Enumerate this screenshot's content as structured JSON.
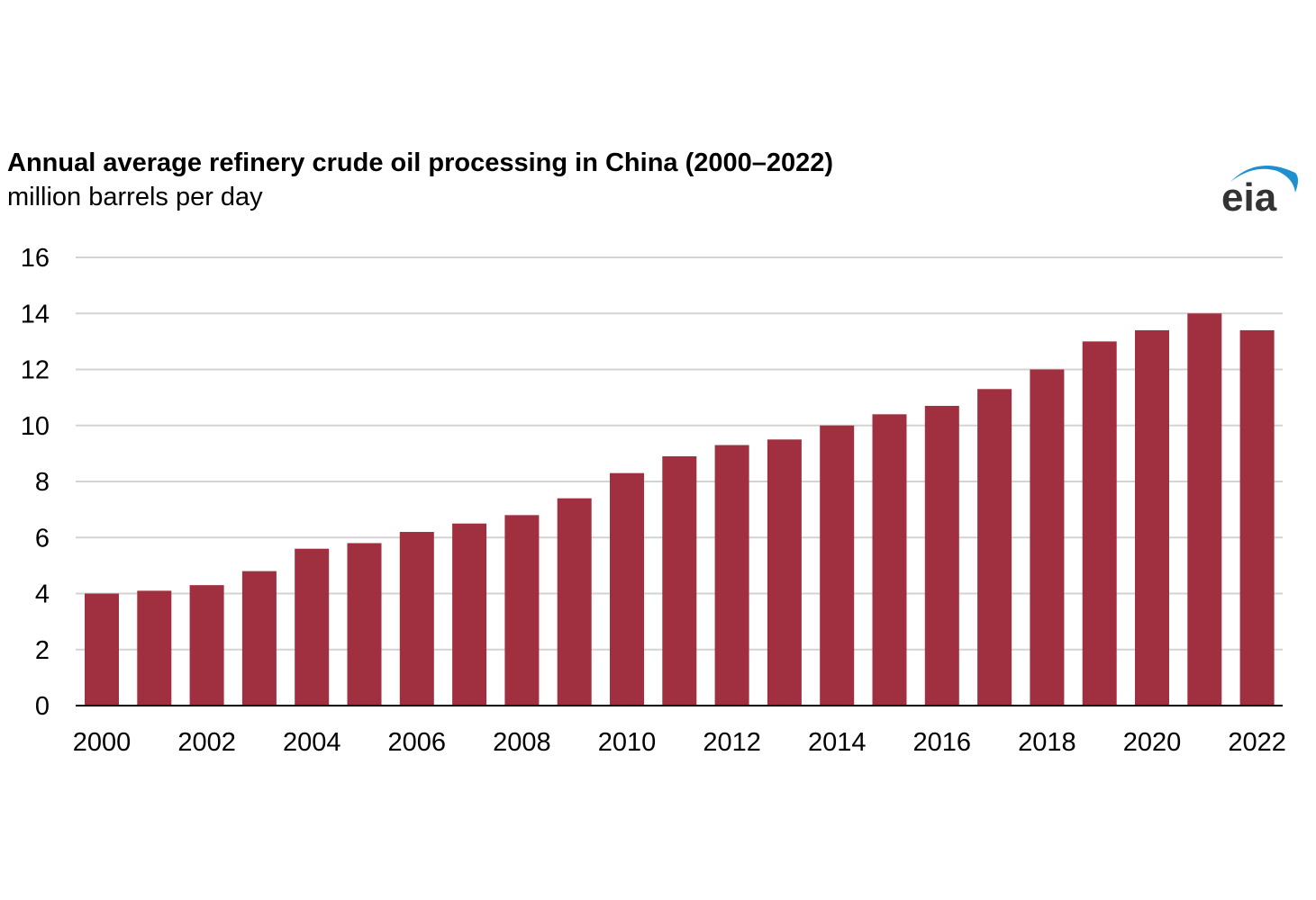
{
  "title": "Annual average refinery crude oil processing in China (2000–2022)",
  "subtitle": "million barrels per day",
  "logo_text": "eia",
  "colors": {
    "bar": "#a03040",
    "grid": "#d3d3d3",
    "axis": "#000000",
    "logo_text": "#333333",
    "logo_swoosh": "#1e8fcf"
  },
  "chart_data": {
    "type": "bar",
    "title": "Annual average refinery crude oil processing in China (2000–2022)",
    "ylabel": "million barrels per day",
    "xlabel": "",
    "categories": [
      "2000",
      "2001",
      "2002",
      "2003",
      "2004",
      "2005",
      "2006",
      "2007",
      "2008",
      "2009",
      "2010",
      "2011",
      "2012",
      "2013",
      "2014",
      "2015",
      "2016",
      "2017",
      "2018",
      "2019",
      "2020",
      "2021",
      "2022"
    ],
    "values": [
      4.0,
      4.1,
      4.3,
      4.8,
      5.6,
      5.8,
      6.2,
      6.5,
      6.8,
      7.4,
      8.3,
      8.9,
      9.3,
      9.5,
      10.0,
      10.4,
      10.7,
      11.3,
      12.0,
      13.0,
      13.4,
      14.0,
      13.4
    ],
    "ylim": [
      0,
      16
    ],
    "yticks": [
      "0",
      "2",
      "4",
      "6",
      "8",
      "10",
      "12",
      "14",
      "16"
    ],
    "xtick_labels": [
      "2000",
      "2002",
      "2004",
      "2006",
      "2008",
      "2010",
      "2012",
      "2014",
      "2016",
      "2018",
      "2020",
      "2022"
    ],
    "grid": true,
    "legend": "none"
  }
}
